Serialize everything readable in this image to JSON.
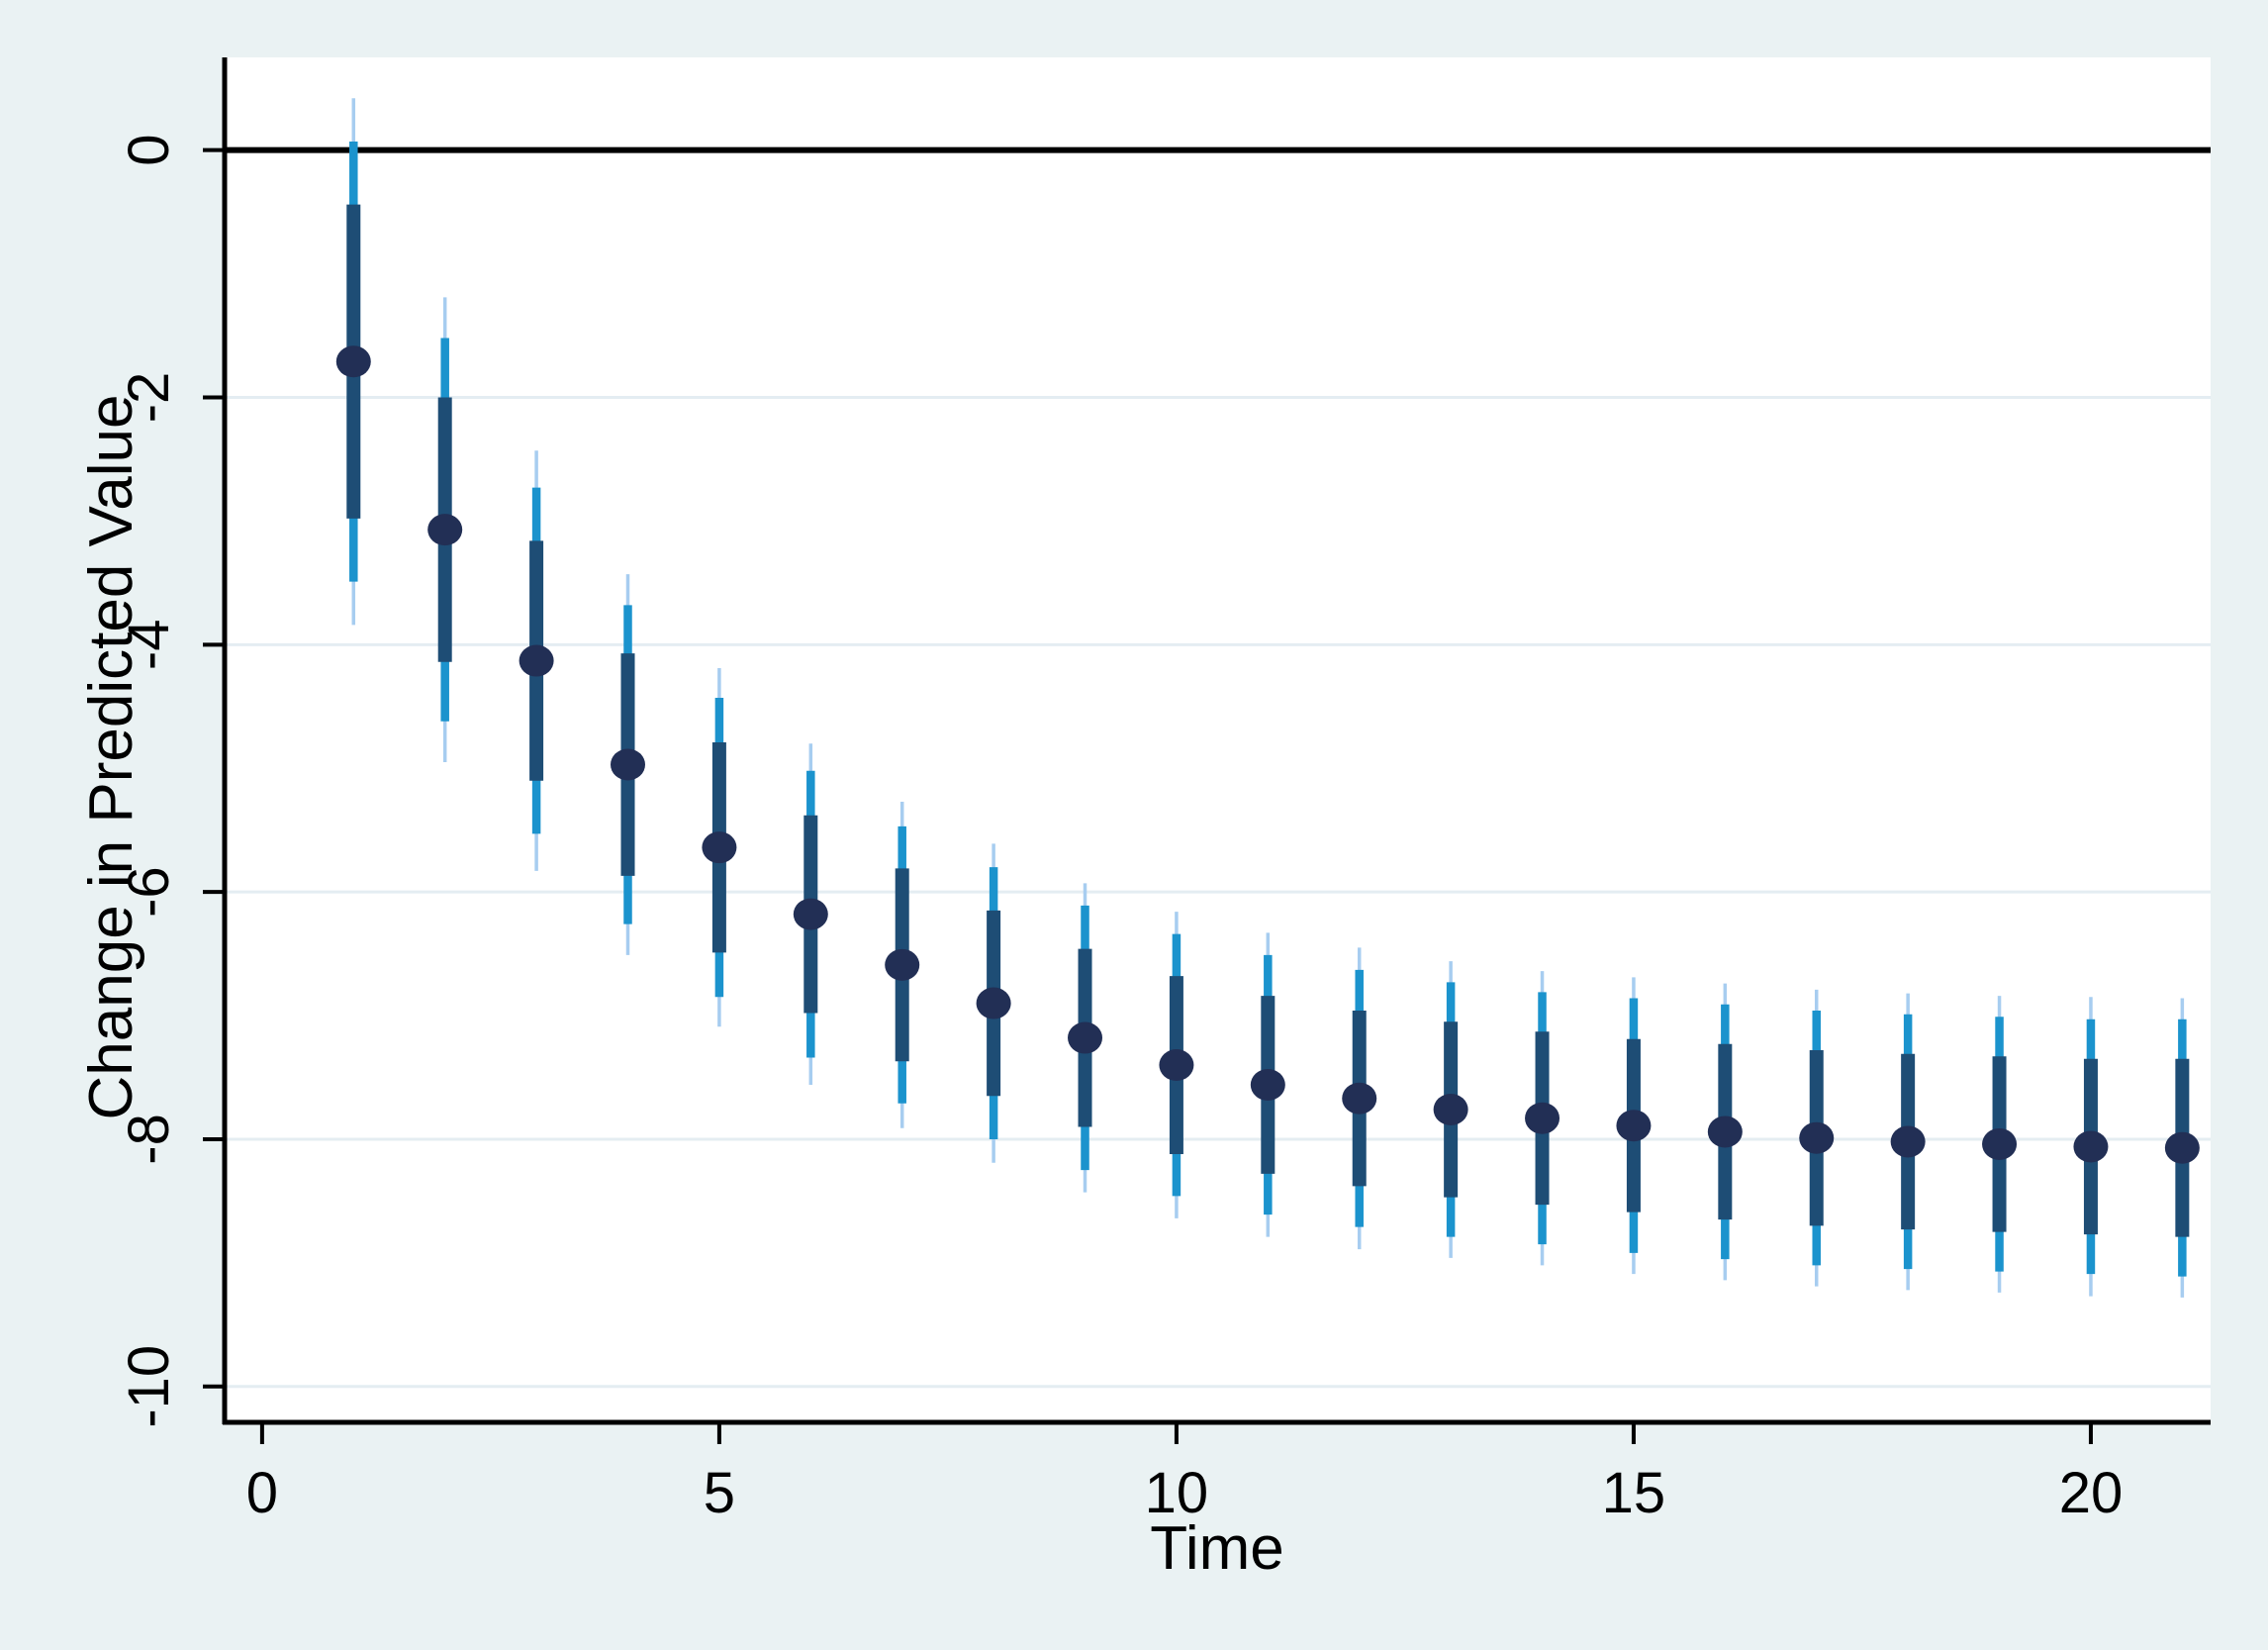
{
  "chart_data": {
    "type": "scatter",
    "subtype": "coefficient-plot-with-nested-confidence-intervals",
    "title": "",
    "xlabel": "Time",
    "ylabel": "Change in Predicted Value",
    "x_ticks": [
      0,
      5,
      10,
      15,
      20
    ],
    "y_ticks": [
      0,
      -2,
      -4,
      -6,
      -8,
      -10
    ],
    "xlim": [
      -0.41,
      21.31
    ],
    "ylim": [
      -10.29,
      0.75
    ],
    "grid": "horizontal",
    "legend_position": "none",
    "reference_line_y": 0,
    "points": [
      {
        "x": 1,
        "y": -1.71,
        "ci_inner": [
          -2.98,
          -0.44
        ],
        "ci_mid": [
          -3.49,
          0.07
        ],
        "ci_outer": [
          -3.84,
          0.42
        ]
      },
      {
        "x": 2,
        "y": -3.07,
        "ci_inner": [
          -4.14,
          -2.0
        ],
        "ci_mid": [
          -4.62,
          -1.52
        ],
        "ci_outer": [
          -4.95,
          -1.19
        ]
      },
      {
        "x": 3,
        "y": -4.13,
        "ci_inner": [
          -5.1,
          -3.16
        ],
        "ci_mid": [
          -5.53,
          -2.73
        ],
        "ci_outer": [
          -5.83,
          -2.43
        ]
      },
      {
        "x": 4,
        "y": -4.97,
        "ci_inner": [
          -5.87,
          -4.07
        ],
        "ci_mid": [
          -6.26,
          -3.68
        ],
        "ci_outer": [
          -6.51,
          -3.43
        ]
      },
      {
        "x": 5,
        "y": -5.64,
        "ci_inner": [
          -6.49,
          -4.79
        ],
        "ci_mid": [
          -6.85,
          -4.43
        ],
        "ci_outer": [
          -7.09,
          -4.19
        ]
      },
      {
        "x": 6,
        "y": -6.18,
        "ci_inner": [
          -6.98,
          -5.38
        ],
        "ci_mid": [
          -7.34,
          -5.02
        ],
        "ci_outer": [
          -7.56,
          -4.8
        ]
      },
      {
        "x": 7,
        "y": -6.59,
        "ci_inner": [
          -7.37,
          -5.81
        ],
        "ci_mid": [
          -7.71,
          -5.47
        ],
        "ci_outer": [
          -7.91,
          -5.27
        ]
      },
      {
        "x": 8,
        "y": -6.9,
        "ci_inner": [
          -7.65,
          -6.15
        ],
        "ci_mid": [
          -8.0,
          -5.8
        ],
        "ci_outer": [
          -8.19,
          -5.61
        ]
      },
      {
        "x": 9,
        "y": -7.18,
        "ci_inner": [
          -7.9,
          -6.46
        ],
        "ci_mid": [
          -8.25,
          -6.11
        ],
        "ci_outer": [
          -8.43,
          -5.93
        ]
      },
      {
        "x": 10,
        "y": -7.4,
        "ci_inner": [
          -8.12,
          -6.68
        ],
        "ci_mid": [
          -8.46,
          -6.34
        ],
        "ci_outer": [
          -8.64,
          -6.16
        ]
      },
      {
        "x": 11,
        "y": -7.56,
        "ci_inner": [
          -8.28,
          -6.84
        ],
        "ci_mid": [
          -8.61,
          -6.51
        ],
        "ci_outer": [
          -8.79,
          -6.33
        ]
      },
      {
        "x": 12,
        "y": -7.67,
        "ci_inner": [
          -8.38,
          -6.96
        ],
        "ci_mid": [
          -8.71,
          -6.63
        ],
        "ci_outer": [
          -8.89,
          -6.45
        ]
      },
      {
        "x": 13,
        "y": -7.76,
        "ci_inner": [
          -8.47,
          -7.05
        ],
        "ci_mid": [
          -8.79,
          -6.73
        ],
        "ci_outer": [
          -8.96,
          -6.56
        ]
      },
      {
        "x": 14,
        "y": -7.83,
        "ci_inner": [
          -8.53,
          -7.13
        ],
        "ci_mid": [
          -8.85,
          -6.81
        ],
        "ci_outer": [
          -9.02,
          -6.64
        ]
      },
      {
        "x": 15,
        "y": -7.89,
        "ci_inner": [
          -8.59,
          -7.19
        ],
        "ci_mid": [
          -8.92,
          -6.86
        ],
        "ci_outer": [
          -9.09,
          -6.69
        ]
      },
      {
        "x": 16,
        "y": -7.94,
        "ci_inner": [
          -8.65,
          -7.23
        ],
        "ci_mid": [
          -8.97,
          -6.91
        ],
        "ci_outer": [
          -9.14,
          -6.74
        ]
      },
      {
        "x": 17,
        "y": -7.99,
        "ci_inner": [
          -8.7,
          -7.28
        ],
        "ci_mid": [
          -9.02,
          -6.96
        ],
        "ci_outer": [
          -9.19,
          -6.79
        ]
      },
      {
        "x": 18,
        "y": -8.02,
        "ci_inner": [
          -8.73,
          -7.31
        ],
        "ci_mid": [
          -9.05,
          -6.99
        ],
        "ci_outer": [
          -9.22,
          -6.82
        ]
      },
      {
        "x": 19,
        "y": -8.04,
        "ci_inner": [
          -8.75,
          -7.33
        ],
        "ci_mid": [
          -9.07,
          -7.01
        ],
        "ci_outer": [
          -9.24,
          -6.84
        ]
      },
      {
        "x": 20,
        "y": -8.06,
        "ci_inner": [
          -8.77,
          -7.35
        ],
        "ci_mid": [
          -9.09,
          -7.03
        ],
        "ci_outer": [
          -9.27,
          -6.85
        ]
      },
      {
        "x": 21,
        "y": -8.07,
        "ci_inner": [
          -8.79,
          -7.35
        ],
        "ci_mid": [
          -9.11,
          -7.03
        ],
        "ci_outer": [
          -9.28,
          -6.86
        ]
      }
    ]
  },
  "colors": {
    "background": "#eaf2f3",
    "plot_background": "#ffffff",
    "gridline": "#e4edf2",
    "zero_line": "#000000",
    "axis": "#000000",
    "marker": "#222f55",
    "ci_inner": "#1e4d75",
    "ci_mid": "#1b93cd",
    "ci_outer": "#a7cdf0"
  }
}
